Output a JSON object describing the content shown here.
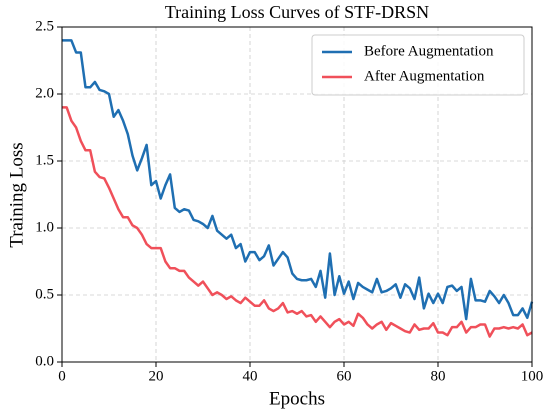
{
  "chart_data": {
    "type": "line",
    "title": "Training Loss Curves of STF-DRSN",
    "xlabel": "Epochs",
    "ylabel": "Training Loss",
    "x": [
      0,
      1,
      2,
      3,
      4,
      5,
      6,
      7,
      8,
      9,
      10,
      11,
      12,
      13,
      14,
      15,
      16,
      17,
      18,
      19,
      20,
      21,
      22,
      23,
      24,
      25,
      26,
      27,
      28,
      29,
      30,
      31,
      32,
      33,
      34,
      35,
      36,
      37,
      38,
      39,
      40,
      41,
      42,
      43,
      44,
      45,
      46,
      47,
      48,
      49,
      50,
      51,
      52,
      53,
      54,
      55,
      56,
      57,
      58,
      59,
      60,
      61,
      62,
      63,
      64,
      65,
      66,
      67,
      68,
      69,
      70,
      71,
      72,
      73,
      74,
      75,
      76,
      77,
      78,
      79,
      80,
      81,
      82,
      83,
      84,
      85,
      86,
      87,
      88,
      89,
      90,
      91,
      92,
      93,
      94,
      95,
      96,
      97,
      98,
      99,
      100
    ],
    "series": [
      {
        "name": "Before Augmentation",
        "color": "#1f6fb2",
        "values": [
          2.4,
          2.4,
          2.4,
          2.31,
          2.31,
          2.05,
          2.05,
          2.09,
          2.03,
          2.02,
          2.0,
          1.83,
          1.88,
          1.8,
          1.7,
          1.54,
          1.43,
          1.52,
          1.62,
          1.32,
          1.35,
          1.22,
          1.32,
          1.4,
          1.15,
          1.12,
          1.14,
          1.13,
          1.06,
          1.05,
          1.03,
          1.0,
          1.09,
          0.98,
          0.95,
          0.92,
          0.95,
          0.85,
          0.88,
          0.75,
          0.82,
          0.82,
          0.76,
          0.79,
          0.87,
          0.72,
          0.77,
          0.82,
          0.78,
          0.66,
          0.62,
          0.61,
          0.61,
          0.62,
          0.56,
          0.68,
          0.48,
          0.81,
          0.5,
          0.64,
          0.51,
          0.6,
          0.47,
          0.59,
          0.56,
          0.54,
          0.52,
          0.62,
          0.52,
          0.53,
          0.55,
          0.58,
          0.48,
          0.58,
          0.55,
          0.47,
          0.63,
          0.4,
          0.51,
          0.44,
          0.51,
          0.44,
          0.56,
          0.57,
          0.53,
          0.56,
          0.32,
          0.62,
          0.46,
          0.46,
          0.45,
          0.53,
          0.49,
          0.44,
          0.5,
          0.44,
          0.35,
          0.35,
          0.4,
          0.33,
          0.45
        ]
      },
      {
        "name": "After Augmentation",
        "color": "#f0505a",
        "values": [
          1.9,
          1.9,
          1.8,
          1.75,
          1.65,
          1.58,
          1.58,
          1.42,
          1.38,
          1.37,
          1.3,
          1.22,
          1.14,
          1.08,
          1.08,
          1.02,
          1.0,
          0.95,
          0.88,
          0.85,
          0.85,
          0.85,
          0.75,
          0.7,
          0.7,
          0.68,
          0.68,
          0.63,
          0.6,
          0.57,
          0.6,
          0.55,
          0.5,
          0.52,
          0.5,
          0.47,
          0.49,
          0.46,
          0.44,
          0.48,
          0.45,
          0.42,
          0.42,
          0.46,
          0.4,
          0.38,
          0.4,
          0.44,
          0.37,
          0.38,
          0.36,
          0.38,
          0.34,
          0.35,
          0.3,
          0.34,
          0.3,
          0.26,
          0.3,
          0.32,
          0.28,
          0.3,
          0.27,
          0.36,
          0.33,
          0.28,
          0.25,
          0.28,
          0.3,
          0.24,
          0.29,
          0.27,
          0.25,
          0.23,
          0.22,
          0.28,
          0.24,
          0.25,
          0.25,
          0.29,
          0.22,
          0.22,
          0.2,
          0.26,
          0.26,
          0.3,
          0.22,
          0.26,
          0.26,
          0.28,
          0.28,
          0.19,
          0.25,
          0.25,
          0.26,
          0.25,
          0.26,
          0.25,
          0.28,
          0.2,
          0.22
        ]
      }
    ],
    "xlim": [
      0,
      100
    ],
    "ylim": [
      0,
      2.5
    ],
    "xticks": [
      0,
      20,
      40,
      60,
      80,
      100
    ],
    "yticks": [
      {
        "value": 0,
        "label": "0.0"
      },
      {
        "value": 0.5,
        "label": "0.5"
      },
      {
        "value": 1,
        "label": "1.0"
      },
      {
        "value": 1.5,
        "label": "1.5"
      },
      {
        "value": 2,
        "label": "2.0"
      },
      {
        "value": 2.5,
        "label": "2.5"
      }
    ],
    "grid": true,
    "legend": "upper right"
  }
}
